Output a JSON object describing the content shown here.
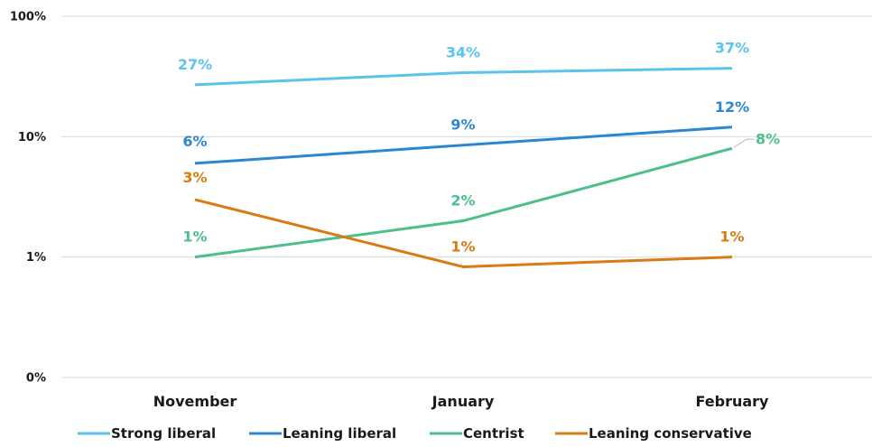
{
  "chart_data": {
    "type": "line",
    "title": "",
    "xlabel": "",
    "ylabel": "",
    "y_scale": "log",
    "y_ticks": [
      {
        "value": 0.1,
        "label": "0%"
      },
      {
        "value": 1,
        "label": "1%"
      },
      {
        "value": 10,
        "label": "10%"
      },
      {
        "value": 100,
        "label": "100%"
      }
    ],
    "categories": [
      "November",
      "January",
      "February"
    ],
    "grid": true,
    "legend_position": "bottom",
    "series": [
      {
        "name": "Strong liberal",
        "color": "#5bc4ee",
        "values": [
          27,
          34,
          37
        ],
        "labels": [
          "27%",
          "34%",
          "37%"
        ]
      },
      {
        "name": "Leaning liberal",
        "color": "#2c87d3",
        "values": [
          6,
          8.5,
          12
        ],
        "labels": [
          "6%",
          "9%",
          "12%"
        ]
      },
      {
        "name": "Centrist",
        "color": "#4cbf8b",
        "values": [
          1,
          2,
          8
        ],
        "labels": [
          "1%",
          "2%",
          "8%"
        ]
      },
      {
        "name": "Leaning conservative",
        "color": "#d97a12",
        "values": [
          3,
          0.83,
          1
        ],
        "labels": [
          "3%",
          "1%",
          "1%"
        ]
      }
    ]
  }
}
